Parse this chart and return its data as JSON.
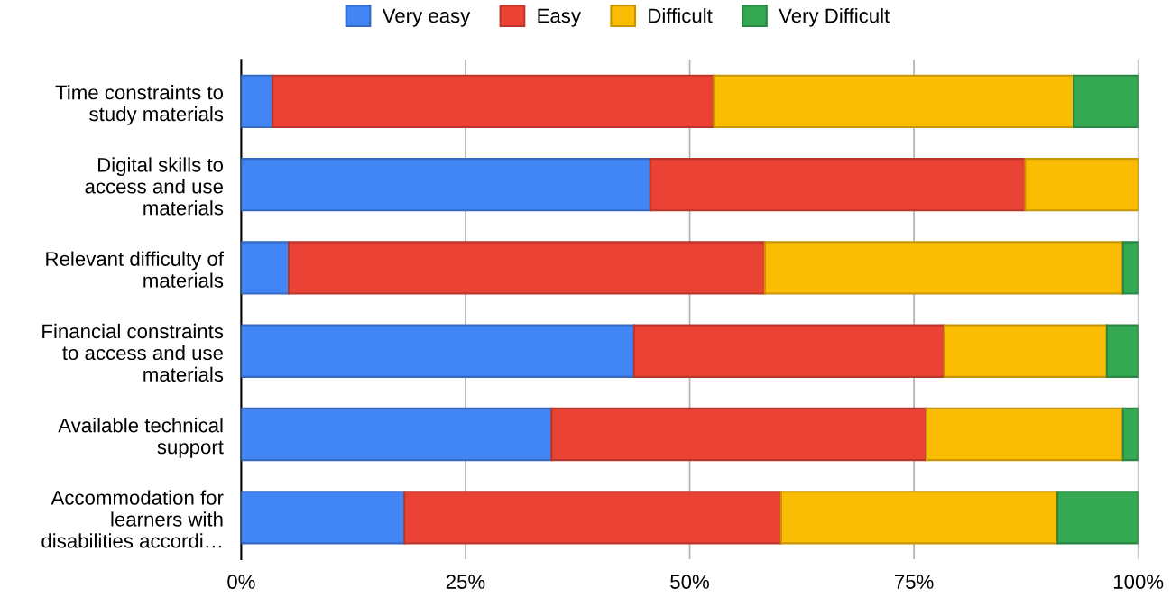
{
  "chart_data": {
    "type": "bar",
    "orientation": "horizontal",
    "stacked": true,
    "categories": [
      "Time constraints to\nstudy materials",
      "Digital skills to\naccess and use\nmaterials",
      "Relevant difficulty of\nmaterials",
      "Financial constraints\nto access and use\nmaterials",
      "Available technical\nsupport",
      "Accommodation for\nlearners with\ndisabilities accordi…"
    ],
    "series": [
      {
        "name": "Very easy",
        "color": "#4285f4",
        "values": [
          3.5,
          45.6,
          5.3,
          43.8,
          34.6,
          18.2
        ]
      },
      {
        "name": "Easy",
        "color": "#ea4335",
        "values": [
          49.2,
          41.8,
          53.1,
          34.6,
          41.8,
          42.0
        ]
      },
      {
        "name": "Difficult",
        "color": "#fbbc04",
        "values": [
          40.1,
          12.6,
          39.9,
          18.1,
          21.9,
          30.8
        ]
      },
      {
        "name": "Very Difficult",
        "color": "#34a853",
        "values": [
          7.2,
          null,
          1.7,
          3.5,
          1.7,
          9.0
        ]
      }
    ],
    "xlim": [
      0,
      100
    ],
    "xticks": [
      {
        "value": 0,
        "label": "0%"
      },
      {
        "value": 25,
        "label": "25%"
      },
      {
        "value": 50,
        "label": "50%"
      },
      {
        "value": 75,
        "label": "75%"
      },
      {
        "value": 100,
        "label": "100%"
      }
    ],
    "grid": "x",
    "legend": "top"
  }
}
